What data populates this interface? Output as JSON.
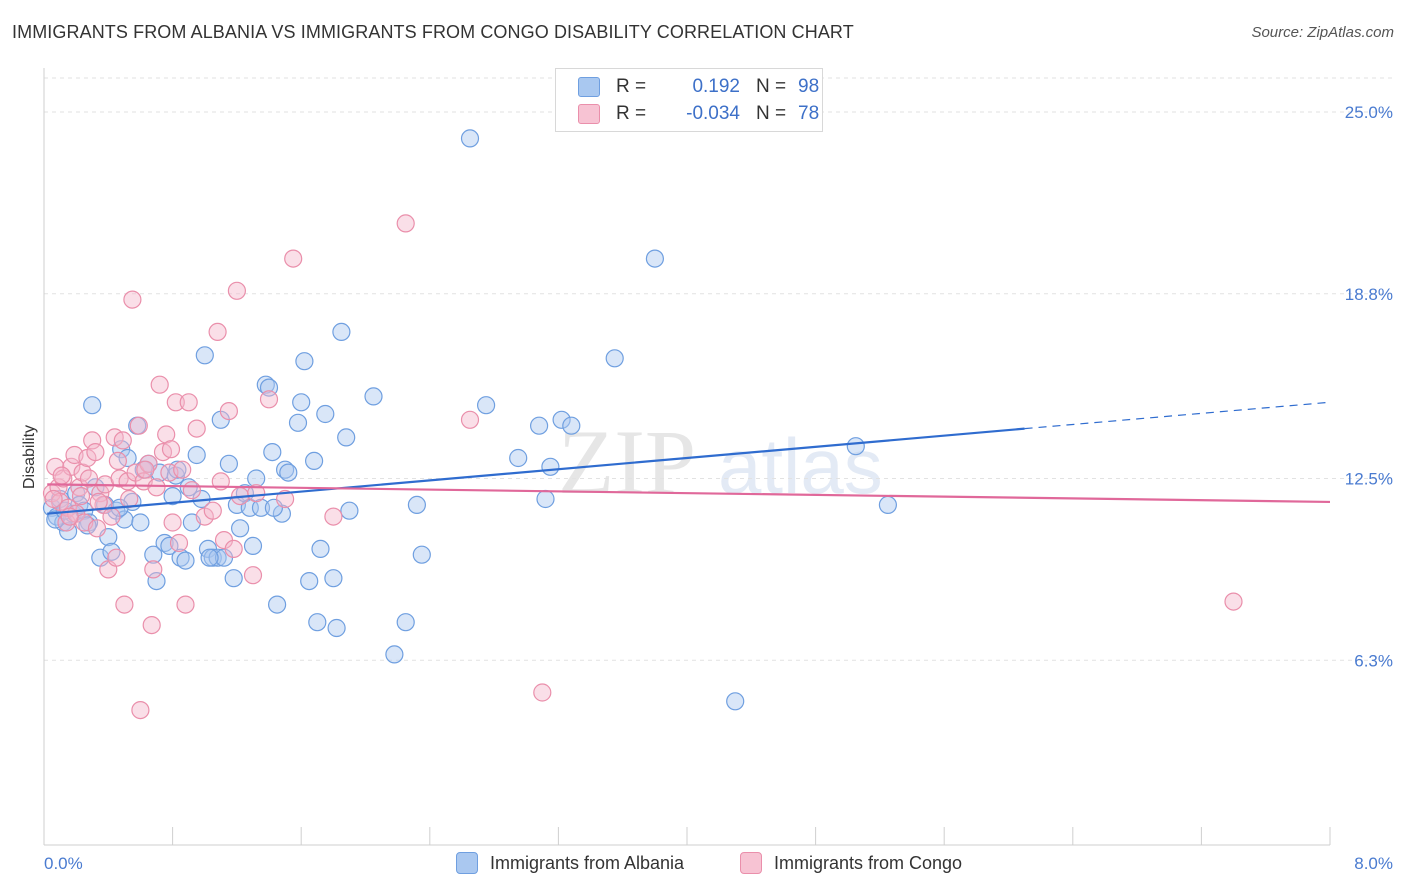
{
  "title": "IMMIGRANTS FROM ALBANIA VS IMMIGRANTS FROM CONGO DISABILITY CORRELATION CHART",
  "source": "Source: ZipAtlas.com",
  "watermark": {
    "zip": "ZIP",
    "atlas": "atlas"
  },
  "legend": {
    "rows": [
      {
        "r_label": "R =",
        "r_value": "0.192",
        "n_label": "N =",
        "n_value": "98",
        "color": "#9fc2ee",
        "border": "#6f9fe0"
      },
      {
        "r_label": "R =",
        "r_value": "-0.034",
        "n_label": "N =",
        "n_value": "78",
        "color": "#f7bfd0",
        "border": "#ea8fab"
      }
    ]
  },
  "chart_data": {
    "type": "scatter",
    "title": "IMMIGRANTS FROM ALBANIA VS IMMIGRANTS FROM CONGO DISABILITY CORRELATION CHART",
    "xlabel": "",
    "ylabel": "Disability",
    "xlim": [
      0,
      8
    ],
    "ylim": [
      0,
      26.5
    ],
    "x_ticks": [
      0,
      8
    ],
    "x_tick_labels": [
      "0.0%",
      "8.0%"
    ],
    "y_ticks": [
      6.3,
      12.5,
      18.8,
      25.0
    ],
    "y_tick_labels": [
      "6.3%",
      "12.5%",
      "18.8%",
      "25.0%"
    ],
    "grid": "horizontal dashed",
    "legend_position": "bottom",
    "series": [
      {
        "name": "Immigrants from Albania",
        "color": "#6f9fe0",
        "fill": "#aac8f0",
        "trend_color": "#2f6ccf",
        "trend": {
          "x0": 0.02,
          "y0": 11.3,
          "x1": 6.1,
          "y1": 14.2,
          "dash_x1": 8.0,
          "dash_y1": 15.1
        },
        "points": [
          [
            0.05,
            11.5
          ],
          [
            0.08,
            11.2
          ],
          [
            0.1,
            11.8
          ],
          [
            0.12,
            11.0
          ],
          [
            0.15,
            10.7
          ],
          [
            0.18,
            11.3
          ],
          [
            0.2,
            12.0
          ],
          [
            0.22,
            11.6
          ],
          [
            0.25,
            11.4
          ],
          [
            0.28,
            11.0
          ],
          [
            0.3,
            15.0
          ],
          [
            0.32,
            12.2
          ],
          [
            0.35,
            9.8
          ],
          [
            0.38,
            11.6
          ],
          [
            0.4,
            10.5
          ],
          [
            0.42,
            10.0
          ],
          [
            0.45,
            11.4
          ],
          [
            0.48,
            13.5
          ],
          [
            0.5,
            11.1
          ],
          [
            0.52,
            13.2
          ],
          [
            0.55,
            11.7
          ],
          [
            0.58,
            14.3
          ],
          [
            0.6,
            11.0
          ],
          [
            0.62,
            12.8
          ],
          [
            0.65,
            13.0
          ],
          [
            0.68,
            9.9
          ],
          [
            0.7,
            9.0
          ],
          [
            0.72,
            12.7
          ],
          [
            0.75,
            10.3
          ],
          [
            0.78,
            10.2
          ],
          [
            0.8,
            11.9
          ],
          [
            0.82,
            12.6
          ],
          [
            0.85,
            9.8
          ],
          [
            0.88,
            9.7
          ],
          [
            0.9,
            12.2
          ],
          [
            0.92,
            11.0
          ],
          [
            0.95,
            13.3
          ],
          [
            0.98,
            11.8
          ],
          [
            1.0,
            16.7
          ],
          [
            1.02,
            10.1
          ],
          [
            1.05,
            9.8
          ],
          [
            1.08,
            9.8
          ],
          [
            1.1,
            14.5
          ],
          [
            1.12,
            9.8
          ],
          [
            1.15,
            13.0
          ],
          [
            1.18,
            9.1
          ],
          [
            1.2,
            11.6
          ],
          [
            1.22,
            10.8
          ],
          [
            1.25,
            12.0
          ],
          [
            1.28,
            11.5
          ],
          [
            1.3,
            10.2
          ],
          [
            1.32,
            12.5
          ],
          [
            1.35,
            11.5
          ],
          [
            1.38,
            15.7
          ],
          [
            1.4,
            15.6
          ],
          [
            1.42,
            13.4
          ],
          [
            1.45,
            8.2
          ],
          [
            1.48,
            11.3
          ],
          [
            1.5,
            12.8
          ],
          [
            1.52,
            12.7
          ],
          [
            1.58,
            14.4
          ],
          [
            1.6,
            15.1
          ],
          [
            1.62,
            16.5
          ],
          [
            1.65,
            9.0
          ],
          [
            1.68,
            13.1
          ],
          [
            1.7,
            7.6
          ],
          [
            1.72,
            10.1
          ],
          [
            1.75,
            14.7
          ],
          [
            1.8,
            9.1
          ],
          [
            1.82,
            7.4
          ],
          [
            1.85,
            17.5
          ],
          [
            1.88,
            13.9
          ],
          [
            1.9,
            11.4
          ],
          [
            2.05,
            15.3
          ],
          [
            2.18,
            6.5
          ],
          [
            2.25,
            7.6
          ],
          [
            2.32,
            11.6
          ],
          [
            2.35,
            9.9
          ],
          [
            2.65,
            24.1
          ],
          [
            2.75,
            15.0
          ],
          [
            2.95,
            13.2
          ],
          [
            3.08,
            14.3
          ],
          [
            3.12,
            11.8
          ],
          [
            3.15,
            12.9
          ],
          [
            3.22,
            14.5
          ],
          [
            3.28,
            14.3
          ],
          [
            3.55,
            16.6
          ],
          [
            3.8,
            20.0
          ],
          [
            4.3,
            4.9
          ],
          [
            5.05,
            13.6
          ],
          [
            5.25,
            11.6
          ],
          [
            0.07,
            11.1
          ],
          [
            0.13,
            11.4
          ],
          [
            0.27,
            10.9
          ],
          [
            0.47,
            11.5
          ],
          [
            0.83,
            12.8
          ],
          [
            1.03,
            9.8
          ],
          [
            1.43,
            11.5
          ]
        ]
      },
      {
        "name": "Immigrants from Congo",
        "color": "#ea8fab",
        "fill": "#f5b9cc",
        "trend_color": "#e0689a",
        "trend": {
          "x0": 0.02,
          "y0": 12.3,
          "x1": 8.0,
          "y1": 11.7
        },
        "points": [
          [
            0.05,
            12.0
          ],
          [
            0.07,
            12.9
          ],
          [
            0.09,
            12.2
          ],
          [
            0.1,
            11.7
          ],
          [
            0.12,
            12.5
          ],
          [
            0.14,
            11.0
          ],
          [
            0.15,
            11.5
          ],
          [
            0.17,
            12.9
          ],
          [
            0.19,
            13.3
          ],
          [
            0.2,
            11.3
          ],
          [
            0.22,
            12.2
          ],
          [
            0.24,
            12.7
          ],
          [
            0.25,
            11.0
          ],
          [
            0.27,
            13.2
          ],
          [
            0.28,
            12.5
          ],
          [
            0.3,
            13.8
          ],
          [
            0.32,
            13.4
          ],
          [
            0.33,
            10.8
          ],
          [
            0.35,
            12.0
          ],
          [
            0.37,
            11.6
          ],
          [
            0.38,
            12.3
          ],
          [
            0.4,
            9.4
          ],
          [
            0.42,
            11.2
          ],
          [
            0.44,
            13.9
          ],
          [
            0.45,
            9.8
          ],
          [
            0.47,
            12.5
          ],
          [
            0.49,
            13.8
          ],
          [
            0.5,
            8.2
          ],
          [
            0.52,
            12.4
          ],
          [
            0.53,
            11.8
          ],
          [
            0.55,
            18.6
          ],
          [
            0.57,
            12.7
          ],
          [
            0.59,
            14.3
          ],
          [
            0.6,
            4.6
          ],
          [
            0.62,
            12.4
          ],
          [
            0.65,
            13.0
          ],
          [
            0.67,
            7.5
          ],
          [
            0.68,
            9.4
          ],
          [
            0.7,
            12.2
          ],
          [
            0.72,
            15.7
          ],
          [
            0.74,
            13.4
          ],
          [
            0.76,
            14.0
          ],
          [
            0.78,
            12.7
          ],
          [
            0.8,
            11.0
          ],
          [
            0.82,
            15.1
          ],
          [
            0.84,
            10.3
          ],
          [
            0.86,
            12.8
          ],
          [
            0.88,
            8.2
          ],
          [
            0.9,
            15.1
          ],
          [
            0.92,
            12.1
          ],
          [
            0.95,
            14.2
          ],
          [
            1.0,
            11.2
          ],
          [
            1.05,
            11.4
          ],
          [
            1.08,
            17.5
          ],
          [
            1.1,
            12.4
          ],
          [
            1.12,
            10.4
          ],
          [
            1.15,
            14.8
          ],
          [
            1.18,
            10.1
          ],
          [
            1.2,
            18.9
          ],
          [
            1.22,
            11.9
          ],
          [
            1.3,
            9.2
          ],
          [
            1.32,
            12.0
          ],
          [
            1.4,
            15.2
          ],
          [
            1.5,
            11.8
          ],
          [
            1.55,
            20.0
          ],
          [
            1.8,
            11.2
          ],
          [
            2.25,
            21.2
          ],
          [
            2.65,
            14.5
          ],
          [
            3.1,
            5.2
          ],
          [
            7.4,
            8.3
          ],
          [
            0.06,
            11.8
          ],
          [
            0.11,
            12.6
          ],
          [
            0.16,
            11.2
          ],
          [
            0.23,
            11.9
          ],
          [
            0.34,
            11.7
          ],
          [
            0.46,
            13.1
          ],
          [
            0.63,
            12.8
          ],
          [
            0.79,
            13.5
          ]
        ]
      }
    ]
  },
  "bottom_legend": [
    {
      "label": "Immigrants from Albania",
      "color": "#aac8f0",
      "border": "#6f9fe0"
    },
    {
      "label": "Immigrants from Congo",
      "color": "#f7c3d3",
      "border": "#ea8fab"
    }
  ]
}
